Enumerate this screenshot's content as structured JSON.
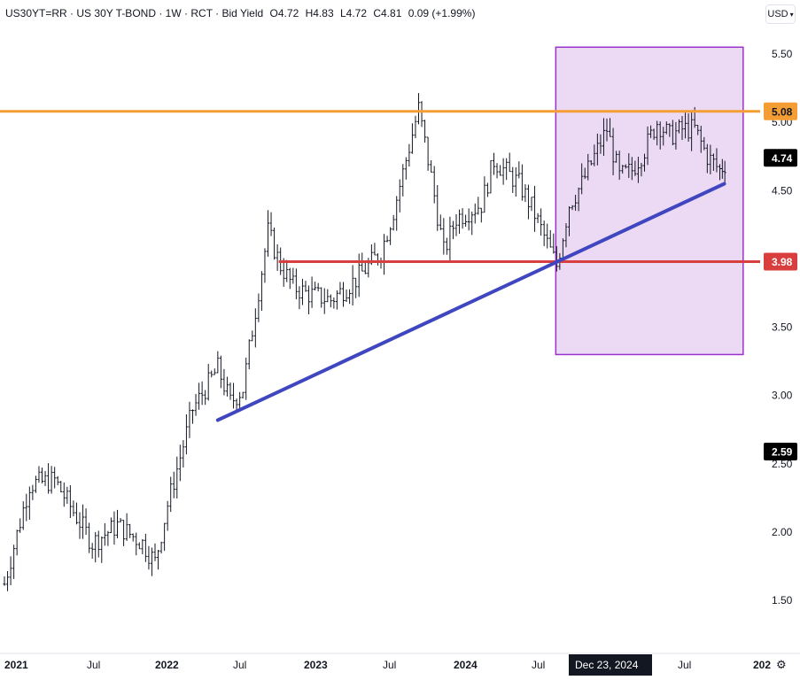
{
  "header": {
    "symbol": "US30YT=RR",
    "name": "US 30Y T-BOND",
    "interval": "1W",
    "source": "RCT",
    "field": "Bid Yield",
    "open": "O4.72",
    "high": "H4.83",
    "low": "L4.72",
    "close": "C4.81",
    "change": "0.09 (+1.99%)",
    "sep": "·"
  },
  "currency": {
    "label": "USD",
    "chevron": "chevron-down-icon"
  },
  "settings_icon": "gear-icon",
  "chart_data": {
    "type": "ohlc",
    "x_axis_labels": [
      "2021",
      "Jul",
      "2022",
      "Jul",
      "2023",
      "Jul",
      "2024",
      "Jul",
      "Dec 23, 2024",
      "Jul",
      "202"
    ],
    "y_axis_ticks": [
      "1.50",
      "2.00",
      "2.50",
      "3.00",
      "3.50",
      "4.50",
      "5.00",
      "5.50"
    ],
    "y_range": [
      1.0,
      5.8
    ],
    "price_labels": [
      {
        "text": "5.08",
        "value": 5.08,
        "color": "#f59d35",
        "text_color": "#131722"
      },
      {
        "text": "4.74",
        "value": 4.74,
        "color": "#000000",
        "text_color": "#ffffff"
      },
      {
        "text": "3.98",
        "value": 3.98,
        "color": "#d93e3e",
        "text_color": "#ffffff"
      },
      {
        "text": "2.59",
        "value": 2.59,
        "color": "#000000",
        "text_color": "#ffffff"
      }
    ],
    "crosshair_date": "Dec 23, 2024",
    "resistance_level": 5.08,
    "support_level": 3.98,
    "trendline": {
      "from": [
        "2022-06",
        2.82
      ],
      "to": [
        "2025-10",
        4.55
      ]
    },
    "highlight_box": {
      "from": "2024-09",
      "to": "2025-12",
      "y_range": [
        3.3,
        5.55
      ]
    },
    "colors": {
      "bars": "#131722",
      "resistance": "#f59d35",
      "support": "#d93e3e",
      "trend": "#3f46c0",
      "box_fill": "rgba(186, 122, 214, 0.28)",
      "box_stroke": "#9932cc"
    },
    "anchors": [
      [
        "2021-01",
        1.62
      ],
      [
        "2021-03",
        2.35
      ],
      [
        "2021-05",
        2.38
      ],
      [
        "2021-08",
        1.92
      ],
      [
        "2021-10",
        2.05
      ],
      [
        "2021-12",
        1.92
      ],
      [
        "2022-01",
        1.78
      ],
      [
        "2022-02",
        2.2
      ],
      [
        "2022-04",
        2.9
      ],
      [
        "2022-06",
        3.2
      ],
      [
        "2022-07",
        2.95
      ],
      [
        "2022-08",
        3.05
      ],
      [
        "2022-10",
        4.2
      ],
      [
        "2022-11",
        3.95
      ],
      [
        "2022-12",
        3.8
      ],
      [
        "2023-01",
        3.75
      ],
      [
        "2023-03",
        3.7
      ],
      [
        "2023-05",
        3.85
      ],
      [
        "2023-07",
        4.05
      ],
      [
        "2023-08",
        4.35
      ],
      [
        "2023-10",
        5.1
      ],
      [
        "2023-11",
        4.6
      ],
      [
        "2023-12",
        4.05
      ],
      [
        "2024-01",
        4.3
      ],
      [
        "2024-03",
        4.4
      ],
      [
        "2024-04",
        4.72
      ],
      [
        "2024-06",
        4.55
      ],
      [
        "2024-07",
        4.38
      ],
      [
        "2024-09",
        3.95
      ],
      [
        "2024-10",
        4.4
      ],
      [
        "2024-11",
        4.55
      ],
      [
        "2024-12",
        4.75
      ],
      [
        "2025-01",
        4.95
      ],
      [
        "2025-02",
        4.6
      ],
      [
        "2025-03",
        4.65
      ],
      [
        "2025-04",
        4.8
      ],
      [
        "2025-05",
        5.0
      ],
      [
        "2025-06",
        4.9
      ],
      [
        "2025-07",
        4.95
      ],
      [
        "2025-08",
        4.95
      ],
      [
        "2025-09",
        4.75
      ],
      [
        "2025-10",
        4.65
      ],
      [
        "2025-10b",
        4.72
      ]
    ]
  }
}
